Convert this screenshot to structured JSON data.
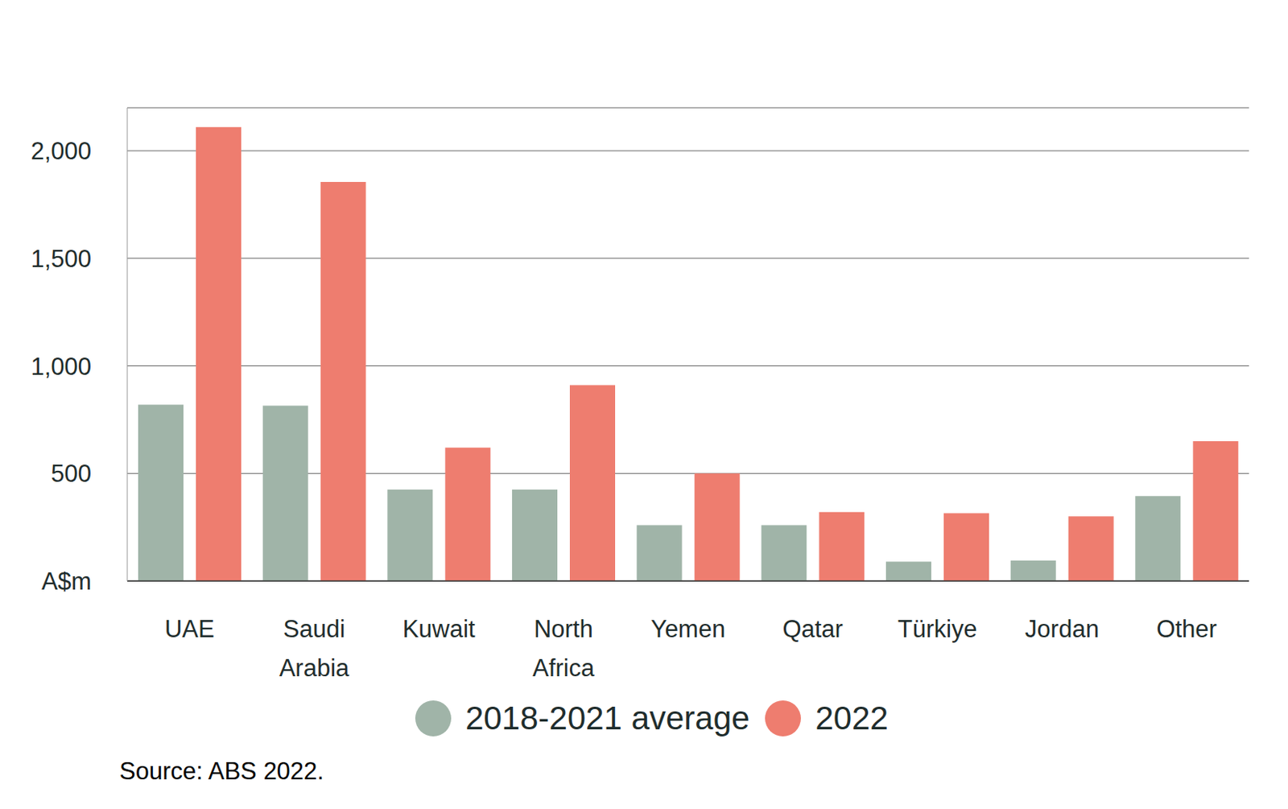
{
  "chart_data": {
    "type": "bar",
    "source": "Source: ABS 2022.",
    "categories": [
      "UAE",
      "Saudi Arabia",
      "Kuwait",
      "North Africa",
      "Yemen",
      "Qatar",
      "Türkiye",
      "Jordan",
      "Other"
    ],
    "series": [
      {
        "name": "2018-2021 average",
        "color": "#a0b4a8",
        "values": [
          820,
          815,
          425,
          425,
          260,
          260,
          90,
          95,
          395
        ]
      },
      {
        "name": "2022",
        "color": "#ee7d6f",
        "values": [
          2110,
          1855,
          620,
          910,
          500,
          320,
          315,
          300,
          650
        ]
      }
    ],
    "ylim": [
      0,
      2200
    ],
    "yticks": [
      {
        "value": 0,
        "label": "A$m"
      },
      500,
      {
        "value": 1000,
        "label": "1,000"
      },
      {
        "value": 1500,
        "label": "1,500"
      },
      {
        "value": 2000,
        "label": "2,000"
      }
    ],
    "grid": true,
    "legend": "bottom"
  }
}
